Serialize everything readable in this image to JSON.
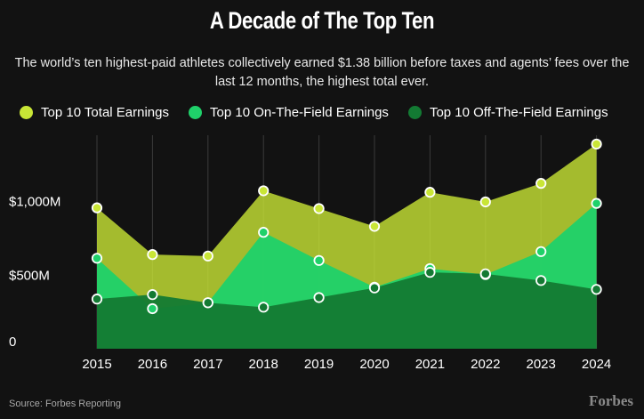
{
  "title": "A Decade of The Top Ten",
  "subtitle": "The world’s ten highest-paid athletes collectively earned $1.38 billion before taxes and agents’ fees over the last 12 months, the highest total ever.",
  "source": "Source: Forbes Reporting",
  "brand": "Forbes",
  "colors": {
    "background": "#121212",
    "total": "#c9e636",
    "on_field": "#1fd16a",
    "off_field": "#137a33"
  },
  "chart_data": {
    "type": "area",
    "x": [
      "2015",
      "2016",
      "2017",
      "2018",
      "2019",
      "2020",
      "2021",
      "2022",
      "2023",
      "2024"
    ],
    "y_ticks": [
      {
        "value": 0,
        "label": "0"
      },
      {
        "value": 500,
        "label": "$500M"
      },
      {
        "value": 1000,
        "label": "$1,000M"
      }
    ],
    "ylim": [
      0,
      1400
    ],
    "grid": "vertical",
    "legend_position": "top",
    "series": [
      {
        "name": "Top 10 Total Earnings",
        "key": "total",
        "values": [
          950,
          635,
          625,
          1065,
          945,
          825,
          1055,
          990,
          1115,
          1380
        ]
      },
      {
        "name": "Top 10 On-The-Field Earnings",
        "key": "on_field",
        "values": [
          610,
          270,
          310,
          785,
          595,
          415,
          540,
          500,
          655,
          980
        ]
      },
      {
        "name": "Top 10 Off-The-Field Earnings",
        "key": "off_field",
        "values": [
          335,
          365,
          310,
          280,
          345,
          410,
          515,
          505,
          460,
          400
        ]
      }
    ]
  }
}
